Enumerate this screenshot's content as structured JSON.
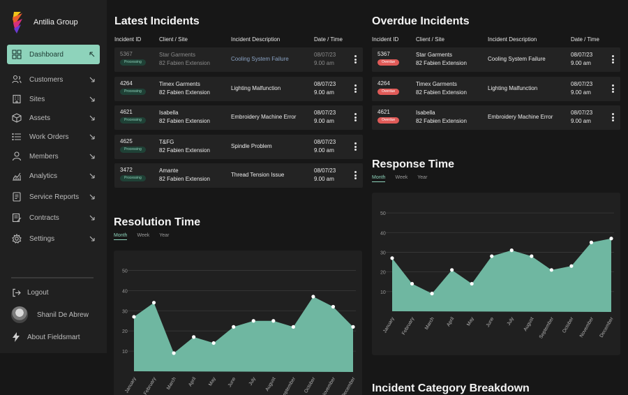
{
  "brand": {
    "name": "Antilia Group"
  },
  "nav": [
    {
      "label": "Dashboard",
      "icon": "dashboard-icon",
      "active": true
    },
    {
      "label": "Customers",
      "icon": "customers-icon"
    },
    {
      "label": "Sites",
      "icon": "sites-icon"
    },
    {
      "label": "Assets",
      "icon": "assets-icon"
    },
    {
      "label": "Work Orders",
      "icon": "work-orders-icon"
    },
    {
      "label": "Members",
      "icon": "members-icon"
    },
    {
      "label": "Analytics",
      "icon": "analytics-icon"
    },
    {
      "label": "Service Reports",
      "icon": "service-reports-icon"
    },
    {
      "label": "Contracts",
      "icon": "contracts-icon"
    },
    {
      "label": "Settings",
      "icon": "settings-icon"
    }
  ],
  "bottom": {
    "logout": "Logout",
    "user": "Shanil De Abrew",
    "about": "About Fieldsmart"
  },
  "latest": {
    "title": "Latest Incidents",
    "headers": [
      "Incident ID",
      "Client / Site",
      "Incident Description",
      "Date / Time"
    ],
    "rows": [
      {
        "id": "5367",
        "status": "Processing",
        "client": "Star Garments",
        "site": "82 Fabien Extension",
        "desc": "Cooling System Failure",
        "date": "08/07/23",
        "time": "9.00 am"
      },
      {
        "id": "4264",
        "status": "Processing",
        "client": "Timex Garments",
        "site": "82 Fabien Extension",
        "desc": "Lighting Malfunction",
        "date": "08/07/23",
        "time": "9.00 am"
      },
      {
        "id": "4621",
        "status": "Processing",
        "client": "Isabella",
        "site": "82 Fabien Extension",
        "desc": "Embroidery Machine Error",
        "date": "08/07/23",
        "time": "9.00 am"
      },
      {
        "id": "4625",
        "status": "Processing",
        "client": "T&FG",
        "site": "82 Fabien Extension",
        "desc": "Spindle Problem",
        "date": "08/07/23",
        "time": "9.00 am"
      },
      {
        "id": "3472",
        "status": "Processing",
        "client": "Amante",
        "site": "82 Fabien Extension",
        "desc": "Thread Tension Issue",
        "date": "08/07/23",
        "time": "9.00 am"
      }
    ]
  },
  "overdue": {
    "title": "Overdue Incidents",
    "headers": [
      "Incident ID",
      "Client / Site",
      "Incident Description",
      "Date / Time"
    ],
    "rows": [
      {
        "id": "5367",
        "status": "Overdue",
        "client": "Star Garments",
        "site": "82 Fabien Extension",
        "desc": "Cooling System Failure",
        "date": "08/07/23",
        "time": "9.00 am"
      },
      {
        "id": "4264",
        "status": "Overdue",
        "client": "Timex Garments",
        "site": "82 Fabien Extension",
        "desc": "Lighting Malfunction",
        "date": "08/07/23",
        "time": "9.00 am"
      },
      {
        "id": "4621",
        "status": "Overdue",
        "client": "Isabella",
        "site": "82 Fabien Extension",
        "desc": "Embroidery Machine Error",
        "date": "08/07/23",
        "time": "9.00 am"
      }
    ]
  },
  "resolution": {
    "title": "Resolution Time",
    "tabs": [
      "Month",
      "Week",
      "Year"
    ]
  },
  "response": {
    "title": "Response Time",
    "tabs": [
      "Month",
      "Week",
      "Year"
    ]
  },
  "category": {
    "title": "Incident Category Breakdown"
  },
  "colors": {
    "accent": "#8ed3bb",
    "area": "#6fb7a1",
    "overdue": "#e05b58"
  },
  "chart_data": [
    {
      "type": "area",
      "title": "Resolution Time",
      "categories": [
        "January",
        "February",
        "March",
        "April",
        "May",
        "June",
        "July",
        "August",
        "September",
        "October",
        "November",
        "December"
      ],
      "values": [
        27,
        34,
        9,
        17,
        14,
        22,
        25,
        25,
        22,
        37,
        32,
        22
      ],
      "ylim": [
        0,
        55
      ],
      "yticks": [
        10,
        20,
        30,
        40,
        50
      ],
      "grid": true
    },
    {
      "type": "area",
      "title": "Response Time",
      "categories": [
        "January",
        "February",
        "March",
        "April",
        "May",
        "June",
        "July",
        "August",
        "September",
        "October",
        "November",
        "December"
      ],
      "values": [
        27,
        14,
        9,
        21,
        14,
        28,
        31,
        28,
        21,
        23,
        35,
        37
      ],
      "ylim": [
        0,
        55
      ],
      "yticks": [
        10,
        20,
        30,
        40,
        50
      ],
      "grid": true
    }
  ]
}
